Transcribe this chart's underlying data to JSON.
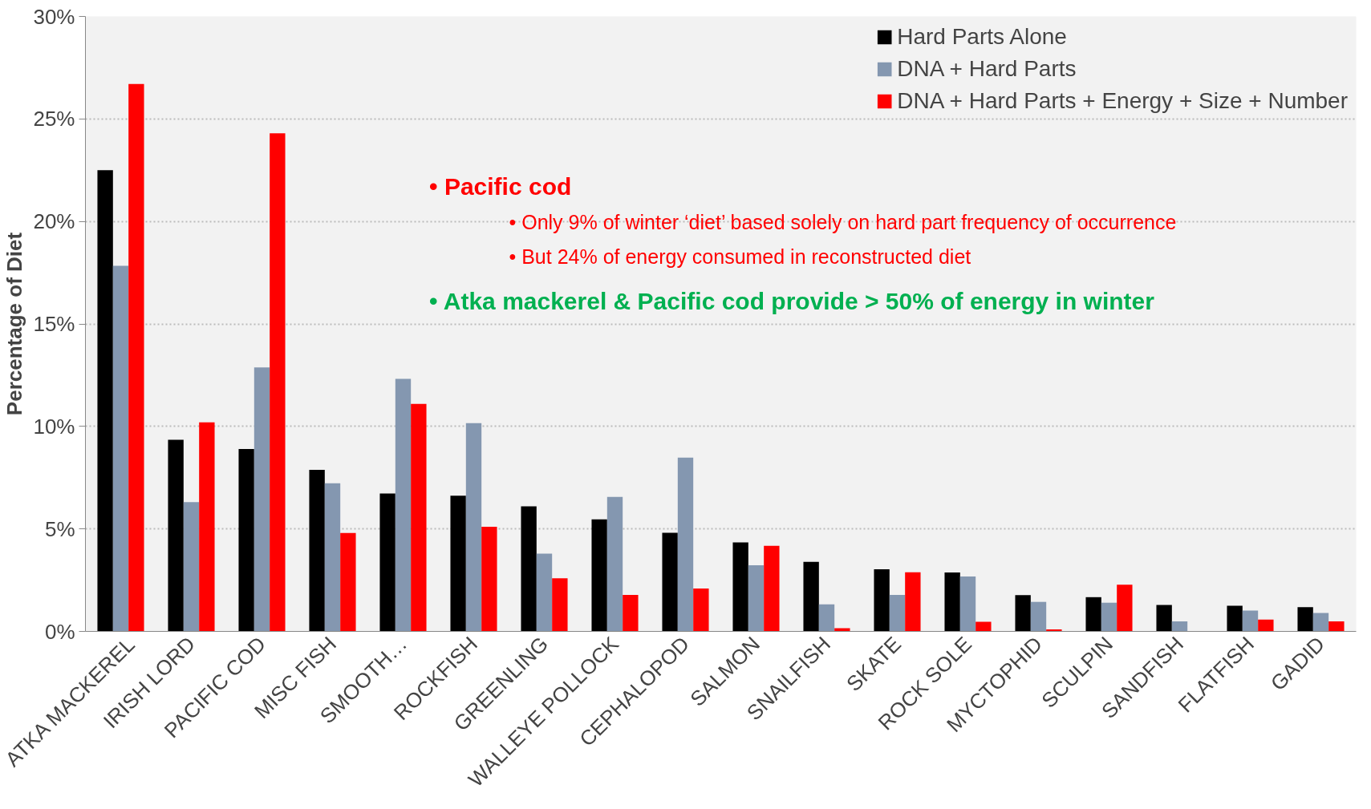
{
  "chart_data": {
    "type": "bar",
    "ylabel": "Percentage of Diet",
    "categories": [
      "ATKA MACKEREL",
      "IRISH LORD",
      "PACIFIC COD",
      "MISC FISH",
      "SMOOTH…",
      "ROCKFISH",
      "GREENLING",
      "WALLEYE POLLOCK",
      "CEPHALOPOD",
      "SALMON",
      "SNAILFISH",
      "SKATE",
      "ROCK SOLE",
      "MYCTOPHID",
      "SCULPIN",
      "SANDFISH",
      "FLATFISH",
      "GADID"
    ],
    "series": [
      {
        "name": "Hard Parts Alone",
        "color": "#000000",
        "values": [
          22.5,
          9.35,
          8.9,
          7.88,
          6.73,
          6.62,
          6.1,
          5.47,
          4.81,
          4.34,
          3.39,
          3.03,
          2.87,
          1.77,
          1.67,
          1.29,
          1.25,
          1.18
        ]
      },
      {
        "name": "DNA + Hard Parts",
        "color": "#8497b0",
        "values": [
          17.84,
          6.31,
          12.88,
          7.23,
          12.32,
          10.16,
          3.79,
          6.56,
          8.48,
          3.23,
          1.32,
          1.78,
          2.68,
          1.44,
          1.4,
          0.49,
          1.02,
          0.9
        ]
      },
      {
        "name": "DNA + Hard Parts + Energy + Size + Number",
        "color": "#ff0000",
        "values": [
          26.7,
          10.2,
          24.3,
          4.8,
          11.1,
          5.1,
          2.59,
          1.78,
          2.09,
          4.18,
          0.16,
          2.88,
          0.47,
          0.1,
          2.28,
          null,
          0.58,
          0.49
        ]
      }
    ],
    "ylim": [
      0,
      30
    ],
    "yticks": [
      {
        "value": 0,
        "label": "0%"
      },
      {
        "value": 5,
        "label": "5%"
      },
      {
        "value": 10,
        "label": "10%"
      },
      {
        "value": 15,
        "label": "15%"
      },
      {
        "value": 20,
        "label": "20%"
      },
      {
        "value": 25,
        "label": "25%"
      },
      {
        "value": 30,
        "label": "30%"
      }
    ],
    "grid": "y",
    "legend": "top right",
    "annotations": [
      "•    Pacific cod",
      "•    Only 9% of winter ‘diet’ based solely on hard part frequency of occurrence",
      "•    But 24% of energy consumed in reconstructed diet",
      "•    Atka mackerel & Pacific cod provide > 50% of energy in winter"
    ]
  }
}
